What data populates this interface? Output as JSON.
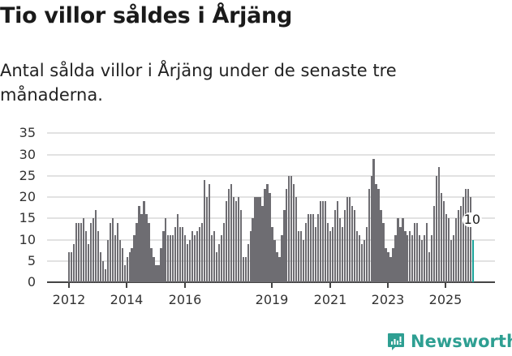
{
  "title": "Tio villor såldes i Årjäng",
  "subtitle": "Antal sålda villor i Årjäng under de senaste tre månaderna.",
  "brand": {
    "name": "Newsworthy",
    "color": "#2e9f92"
  },
  "colors": {
    "bar": "#6e6d72",
    "highlight": "#1aa39a",
    "grid": "#e2e2e2"
  },
  "chart_data": {
    "type": "bar",
    "title": "Tio villor såldes i Årjäng",
    "subtitle": "Antal sålda villor i Årjäng under de senaste tre månaderna.",
    "xlabel": "",
    "ylabel": "",
    "ylim": [
      0,
      35
    ],
    "yticks": [
      0,
      5,
      10,
      15,
      20,
      25,
      30,
      35
    ],
    "xtick_labels": [
      "2012",
      "2014",
      "2016",
      "2019",
      "2021",
      "2023",
      "2025"
    ],
    "grid": true,
    "x_start": "2012-01",
    "frequency": "monthly",
    "annotation": {
      "label": "10",
      "target": "last bar"
    },
    "values": [
      7,
      7,
      9,
      14,
      14,
      14,
      15,
      12,
      9,
      14,
      15,
      17,
      12,
      7,
      5,
      3,
      10,
      14,
      15,
      11,
      14,
      10,
      8,
      4,
      6,
      7,
      8,
      11,
      14,
      18,
      16,
      19,
      16,
      14,
      8,
      6,
      4,
      4,
      8,
      12,
      15,
      11,
      11,
      11,
      13,
      16,
      13,
      13,
      11,
      9,
      10,
      12,
      11,
      12,
      13,
      14,
      24,
      20,
      23,
      11,
      12,
      7,
      9,
      11,
      14,
      19,
      22,
      23,
      20,
      19,
      20,
      17,
      6,
      6,
      9,
      12,
      15,
      20,
      20,
      20,
      18,
      22,
      23,
      21,
      13,
      10,
      7,
      6,
      11,
      17,
      22,
      25,
      25,
      23,
      20,
      12,
      12,
      10,
      14,
      16,
      16,
      16,
      13,
      16,
      19,
      19,
      19,
      14,
      12,
      13,
      17,
      19,
      15,
      13,
      17,
      20,
      20,
      18,
      17,
      12,
      11,
      9,
      10,
      13,
      22,
      25,
      29,
      23,
      22,
      17,
      14,
      8,
      7,
      6,
      8,
      11,
      15,
      13,
      15,
      12,
      11,
      12,
      11,
      14,
      14,
      11,
      10,
      11,
      14,
      7,
      11,
      18,
      25,
      27,
      21,
      19,
      16,
      15,
      10,
      11,
      15,
      17,
      18,
      20,
      22,
      22,
      20,
      10
    ]
  }
}
